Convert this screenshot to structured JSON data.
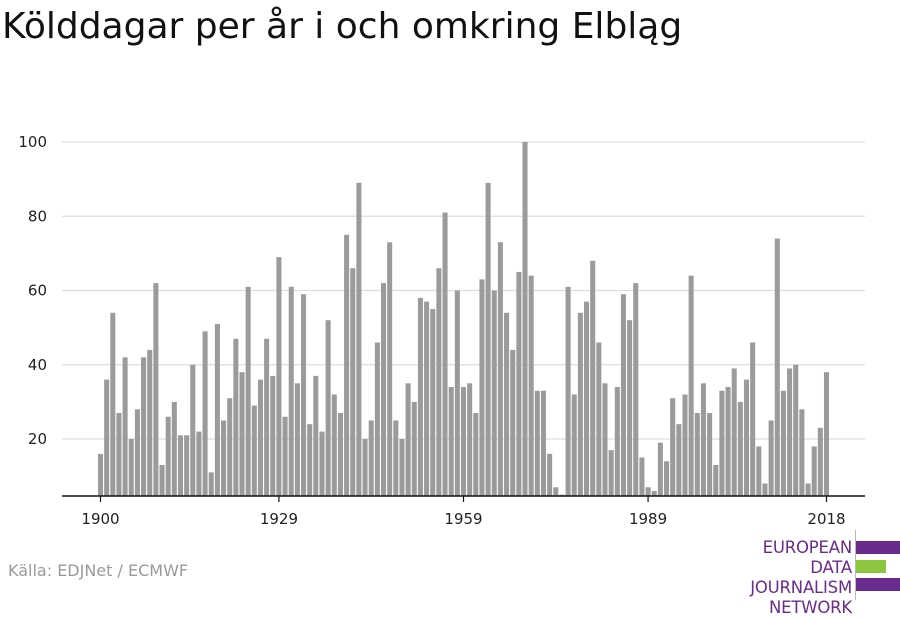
{
  "title": "Kölddagar per år i och omkring Elbląg",
  "source": "Källa: EDJNet / ECMWF",
  "logo": {
    "lines": [
      "EUROPEAN",
      "DATA JOURNALISM",
      "NETWORK"
    ],
    "colors": {
      "primary": "#6a2b8c",
      "accent": "#8cc63f"
    }
  },
  "colors": {
    "bar": "#9b9b9b",
    "grid": "#dddddd",
    "axis": "#111111"
  },
  "chart_data": {
    "type": "bar",
    "title": "Kölddagar per år i och omkring Elbląg",
    "xlabel": "",
    "ylabel": "",
    "x_ticks": [
      1900,
      1929,
      1959,
      1989,
      2018
    ],
    "y_ticks": [
      20,
      40,
      60,
      80,
      100
    ],
    "ylim": [
      5,
      103
    ],
    "grid": true,
    "categories": [
      1900,
      1901,
      1902,
      1903,
      1904,
      1905,
      1906,
      1907,
      1908,
      1909,
      1910,
      1911,
      1912,
      1913,
      1914,
      1915,
      1916,
      1917,
      1918,
      1919,
      1920,
      1921,
      1922,
      1923,
      1924,
      1925,
      1926,
      1927,
      1928,
      1929,
      1930,
      1931,
      1932,
      1933,
      1934,
      1935,
      1936,
      1937,
      1938,
      1939,
      1940,
      1941,
      1942,
      1943,
      1944,
      1945,
      1946,
      1947,
      1948,
      1949,
      1950,
      1951,
      1952,
      1953,
      1954,
      1955,
      1956,
      1957,
      1958,
      1959,
      1960,
      1961,
      1962,
      1963,
      1964,
      1965,
      1966,
      1967,
      1968,
      1969,
      1970,
      1971,
      1972,
      1973,
      1974,
      1975,
      1976,
      1977,
      1978,
      1979,
      1980,
      1981,
      1982,
      1983,
      1984,
      1985,
      1986,
      1987,
      1988,
      1989,
      1990,
      1991,
      1992,
      1993,
      1994,
      1995,
      1996,
      1997,
      1998,
      1999,
      2000,
      2001,
      2002,
      2003,
      2004,
      2005,
      2006,
      2007,
      2008,
      2009,
      2010,
      2011,
      2012,
      2013,
      2014,
      2015,
      2016,
      2017,
      2018
    ],
    "values": [
      16,
      36,
      54,
      27,
      42,
      20,
      28,
      42,
      44,
      62,
      13,
      26,
      30,
      21,
      21,
      40,
      22,
      49,
      11,
      51,
      25,
      31,
      47,
      38,
      61,
      29,
      36,
      47,
      37,
      69,
      26,
      61,
      35,
      59,
      24,
      37,
      22,
      52,
      32,
      27,
      75,
      66,
      89,
      20,
      25,
      46,
      62,
      73,
      25,
      20,
      35,
      30,
      58,
      57,
      55,
      66,
      81,
      34,
      60,
      34,
      35,
      27,
      63,
      89,
      60,
      73,
      54,
      44,
      65,
      100,
      64,
      33,
      33,
      16,
      7,
      5,
      61,
      32,
      54,
      57,
      68,
      46,
      35,
      17,
      34,
      59,
      52,
      62,
      15,
      7,
      6,
      19,
      14,
      31,
      24,
      32,
      64,
      27,
      35,
      27,
      13,
      33,
      34,
      39,
      30,
      36,
      46,
      18,
      8,
      25,
      74,
      33,
      39,
      40,
      28,
      8,
      18,
      23,
      38
    ]
  }
}
